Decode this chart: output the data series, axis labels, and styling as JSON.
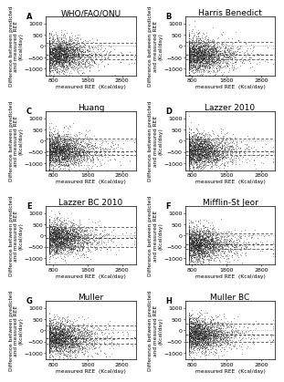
{
  "panels": [
    {
      "label": "A",
      "title": "WHO/FAO/ONU",
      "bias": -400,
      "loa_upper": 150,
      "loa_lower": -600,
      "zero_line": 0
    },
    {
      "label": "B",
      "title": "Harris Benedict",
      "bias": -400,
      "loa_upper": 200,
      "loa_lower": -600,
      "zero_line": 0
    },
    {
      "label": "C",
      "title": "Huang",
      "bias": -450,
      "loa_upper": 100,
      "loa_lower": -650,
      "zero_line": 0
    },
    {
      "label": "D",
      "title": "Lazzer 2010",
      "bias": -450,
      "loa_upper": 100,
      "loa_lower": -650,
      "zero_line": 0
    },
    {
      "label": "E",
      "title": "Lazzer BC 2010",
      "bias": -100,
      "loa_upper": 400,
      "loa_lower": -500,
      "zero_line": 0
    },
    {
      "label": "F",
      "title": "Mifflin-St Jeor",
      "bias": -400,
      "loa_upper": 100,
      "loa_lower": -600,
      "zero_line": 0
    },
    {
      "label": "G",
      "title": "Muller",
      "bias": -350,
      "loa_upper": 200,
      "loa_lower": -600,
      "zero_line": 0
    },
    {
      "label": "H",
      "title": "Muller BC",
      "bias": -200,
      "loa_upper": 300,
      "loa_lower": -500,
      "zero_line": 0
    }
  ],
  "n_points": 2500,
  "x_min": 600,
  "x_max": 3200,
  "y_min": -1300,
  "y_max": 1300,
  "x_ticks": [
    800,
    1800,
    2800
  ],
  "y_ticks": [
    -1000,
    -500,
    0,
    500,
    1000
  ],
  "xlabel": "measured REE  (Kcal/day)",
  "ylabel": "Difference between predicted\nand measured REE\n(Kcal/day)",
  "dot_color": "#1a1a1a",
  "dot_size": 0.3,
  "dot_alpha": 0.55,
  "bias_line_color": "#444444",
  "loa_line_color": "#666666",
  "zero_line_color": "#888888",
  "background_color": "#ffffff",
  "panel_label_fontsize": 6,
  "title_fontsize": 6.5,
  "tick_fontsize": 4.5,
  "axis_label_fontsize": 4.2,
  "line_width": 0.7
}
